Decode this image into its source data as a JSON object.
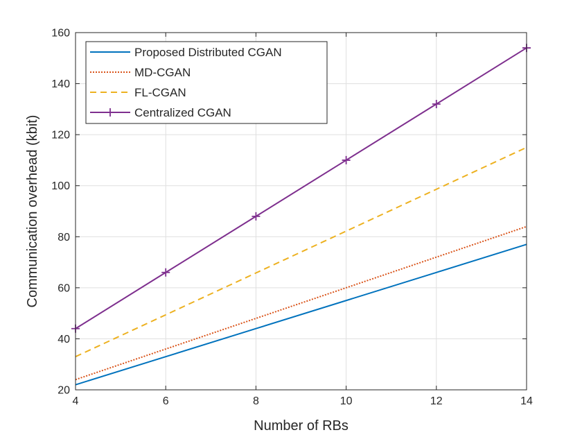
{
  "chart_data": {
    "type": "line",
    "title": "",
    "xlabel": "Number of RBs",
    "ylabel": "Communication overhead (kbit)",
    "xlim": [
      4,
      14
    ],
    "ylim": [
      20,
      160
    ],
    "xticks": [
      4,
      6,
      8,
      10,
      12,
      14
    ],
    "yticks": [
      20,
      40,
      60,
      80,
      100,
      120,
      140,
      160
    ],
    "grid": true,
    "legend_position": "top-left",
    "x": [
      4,
      6,
      8,
      10,
      12,
      14
    ],
    "series": [
      {
        "name": "Proposed Distributed CGAN",
        "values": [
          22,
          33,
          44,
          55,
          66,
          77
        ],
        "color": "#0072BD",
        "style": "solid",
        "marker": "none"
      },
      {
        "name": "MD-CGAN",
        "values": [
          24,
          36,
          48,
          60,
          72,
          84
        ],
        "color": "#D95319",
        "style": "dotted",
        "marker": "none"
      },
      {
        "name": "FL-CGAN",
        "values": [
          33,
          49.4,
          65.8,
          82.2,
          98.6,
          115
        ],
        "color": "#EDB120",
        "style": "dashed",
        "marker": "none"
      },
      {
        "name": "Centralized CGAN",
        "values": [
          44,
          66,
          88,
          110,
          132,
          154
        ],
        "color": "#7E2F8E",
        "style": "solid",
        "marker": "plus"
      }
    ]
  }
}
